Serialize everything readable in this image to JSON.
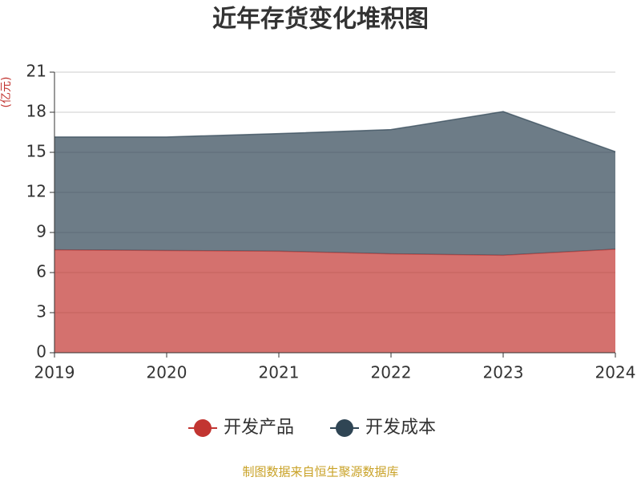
{
  "chart_data": {
    "type": "stacked-area",
    "title": "近年存货变化堆积图",
    "y_label": "(亿元)",
    "source": "制图数据来自恒生聚源数据库",
    "categories": [
      "2019",
      "2020",
      "2021",
      "2022",
      "2023",
      "2024"
    ],
    "series": [
      {
        "name": "开发产品",
        "color": "#c23531",
        "values": [
          7.7,
          7.65,
          7.6,
          7.4,
          7.3,
          7.75
        ]
      },
      {
        "name": "开发成本",
        "color": "#2f4554",
        "values": [
          8.45,
          8.5,
          8.8,
          9.3,
          10.75,
          7.3
        ]
      }
    ],
    "ylim": [
      0,
      21
    ],
    "yticks": [
      0,
      3,
      6,
      9,
      12,
      15,
      18,
      21
    ],
    "grid": true,
    "legend": "bottom"
  }
}
